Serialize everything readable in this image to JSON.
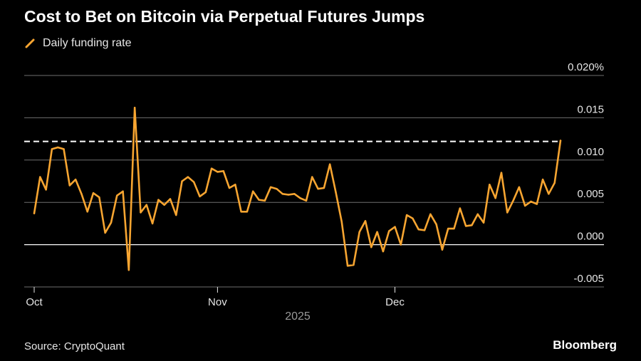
{
  "header": {
    "title": "Cost to Bet on Bitcoin via Perpetual Futures Jumps"
  },
  "legend": {
    "items": [
      {
        "label": "Daily funding rate",
        "color": "#f7a531"
      }
    ]
  },
  "footer": {
    "source": "Source: CryptoQuant",
    "brand": "Bloomberg"
  },
  "colors": {
    "background": "#000000",
    "line": "#f7a531",
    "gridline": "#6e6e6e",
    "zero_line": "#ffffff",
    "reference_line": "#ffffff",
    "text": "#e6e6e6"
  },
  "chart_data": {
    "type": "line",
    "title": "Cost to Bet on Bitcoin via Perpetual Futures Jumps",
    "xlabel": "2025",
    "ylabel": "",
    "ylim": [
      -0.005,
      0.02
    ],
    "yticks": [
      -0.005,
      0.0,
      0.005,
      0.01,
      0.015,
      0.02
    ],
    "ytick_labels": [
      "-0.005",
      "0.000",
      "0.005",
      "0.010",
      "0.015",
      "0.020%"
    ],
    "x_ticks": [
      {
        "label": "Oct",
        "day": 0
      },
      {
        "label": "Nov",
        "day": 31
      },
      {
        "label": "Dec",
        "day": 61
      }
    ],
    "year_label": "2025",
    "reference_line": {
      "value": 0.0122,
      "style": "dashed"
    },
    "grid": true,
    "series": [
      {
        "name": "Daily funding rate",
        "start_label": "Oct 1, 2025",
        "values": [
          0.0037,
          0.008,
          0.0065,
          0.0113,
          0.0115,
          0.0113,
          0.007,
          0.0077,
          0.006,
          0.0039,
          0.0061,
          0.0056,
          0.0014,
          0.0026,
          0.0058,
          0.0063,
          -0.003,
          0.0162,
          0.0038,
          0.0047,
          0.0025,
          0.0053,
          0.0047,
          0.0054,
          0.0035,
          0.0075,
          0.008,
          0.0074,
          0.0057,
          0.0062,
          0.009,
          0.0086,
          0.0087,
          0.0067,
          0.0071,
          0.0039,
          0.0039,
          0.0063,
          0.0053,
          0.0052,
          0.0068,
          0.0066,
          0.006,
          0.0059,
          0.006,
          0.0055,
          0.0052,
          0.008,
          0.0066,
          0.0067,
          0.0095,
          0.0062,
          0.0027,
          -0.0025,
          -0.0024,
          0.0015,
          0.0028,
          -0.0003,
          0.0015,
          -0.0008,
          0.0016,
          0.0021,
          0.0,
          0.0035,
          0.0031,
          0.0018,
          0.0017,
          0.0036,
          0.0024,
          -0.0006,
          0.0019,
          0.0019,
          0.0043,
          0.0022,
          0.0023,
          0.0036,
          0.0026,
          0.0071,
          0.0055,
          0.0085,
          0.0038,
          0.0052,
          0.0068,
          0.0046,
          0.0051,
          0.0048,
          0.0077,
          0.006,
          0.0073,
          0.0123
        ]
      }
    ]
  }
}
